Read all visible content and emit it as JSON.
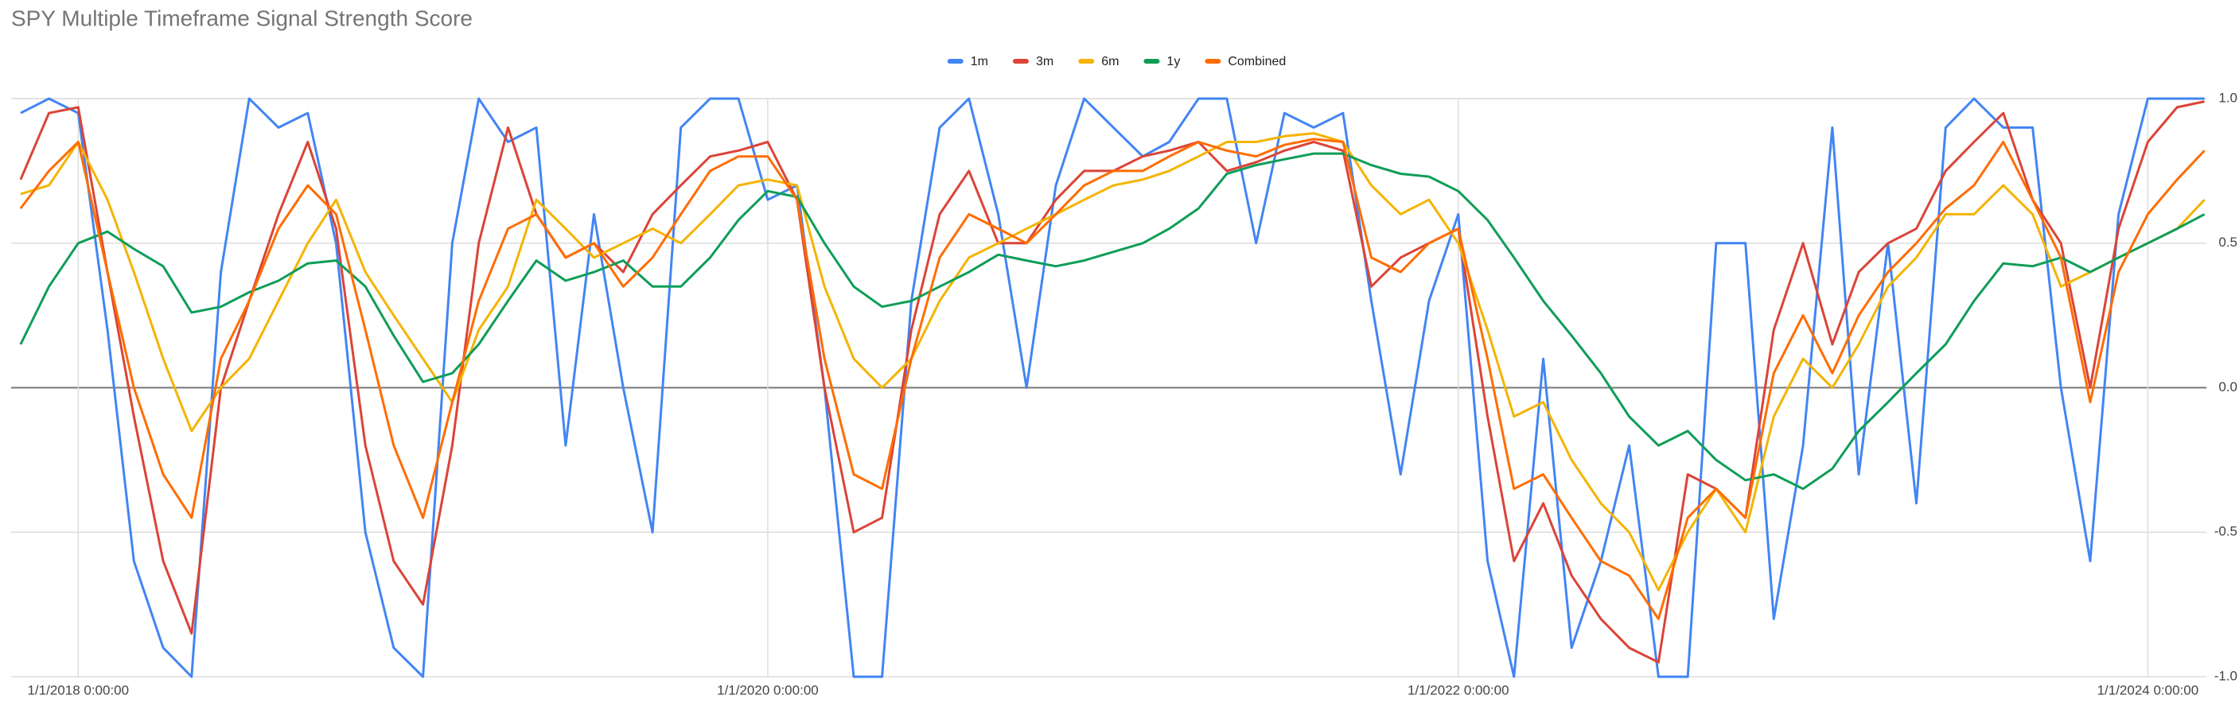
{
  "chart_data": {
    "type": "line",
    "title": "SPY Multiple Timeframe Signal Strength Score",
    "x": [
      "2017-11-01",
      "2017-12-01",
      "2018-01-01",
      "2018-02-01",
      "2018-03-01",
      "2018-04-01",
      "2018-05-01",
      "2018-06-01",
      "2018-07-01",
      "2018-08-01",
      "2018-09-01",
      "2018-10-01",
      "2018-11-01",
      "2018-12-01",
      "2019-01-01",
      "2019-02-01",
      "2019-03-01",
      "2019-04-01",
      "2019-05-01",
      "2019-06-01",
      "2019-07-01",
      "2019-08-01",
      "2019-09-01",
      "2019-10-01",
      "2019-11-01",
      "2019-12-01",
      "2020-01-01",
      "2020-02-01",
      "2020-03-01",
      "2020-04-01",
      "2020-05-01",
      "2020-06-01",
      "2020-07-01",
      "2020-08-01",
      "2020-09-01",
      "2020-10-01",
      "2020-11-01",
      "2020-12-01",
      "2021-01-01",
      "2021-02-01",
      "2021-03-01",
      "2021-04-01",
      "2021-05-01",
      "2021-06-01",
      "2021-07-01",
      "2021-08-01",
      "2021-09-01",
      "2021-10-01",
      "2021-11-01",
      "2021-12-01",
      "2022-01-01",
      "2022-02-01",
      "2022-03-01",
      "2022-04-01",
      "2022-05-01",
      "2022-06-01",
      "2022-07-01",
      "2022-08-01",
      "2022-09-01",
      "2022-10-01",
      "2022-11-01",
      "2022-12-01",
      "2023-01-01",
      "2023-02-01",
      "2023-03-01",
      "2023-04-01",
      "2023-05-01",
      "2023-06-01",
      "2023-07-01",
      "2023-08-01",
      "2023-09-01",
      "2023-10-01",
      "2023-11-01",
      "2023-12-01",
      "2024-01-01",
      "2024-02-01",
      "2024-03-01"
    ],
    "series": [
      {
        "name": "1m",
        "color": "#4285f4",
        "values": [
          0.95,
          1.0,
          0.95,
          0.2,
          -0.6,
          -0.9,
          -1.0,
          0.4,
          1.0,
          0.9,
          0.95,
          0.5,
          -0.5,
          -0.9,
          -1.0,
          0.5,
          1.0,
          0.85,
          0.9,
          -0.2,
          0.6,
          0.0,
          -0.5,
          0.9,
          1.0,
          1.0,
          0.65,
          0.7,
          0.0,
          -1.0,
          -1.0,
          0.3,
          0.9,
          1.0,
          0.6,
          0.0,
          0.7,
          1.0,
          0.9,
          0.8,
          0.85,
          1.0,
          1.0,
          0.5,
          0.95,
          0.9,
          0.95,
          0.3,
          -0.3,
          0.3,
          0.6,
          -0.6,
          -1.0,
          0.1,
          -0.9,
          -0.6,
          -0.2,
          -1.0,
          -1.0,
          0.5,
          0.5,
          -0.8,
          -0.2,
          0.9,
          -0.3,
          0.5,
          -0.4,
          0.9,
          1.0,
          0.9,
          0.9,
          0.0,
          -0.6,
          0.6,
          1.0,
          1.0,
          1.0
        ]
      },
      {
        "name": "3m",
        "color": "#db4437",
        "values": [
          0.72,
          0.95,
          0.97,
          0.4,
          -0.1,
          -0.6,
          -0.85,
          0.0,
          0.3,
          0.6,
          0.85,
          0.55,
          -0.2,
          -0.6,
          -0.75,
          -0.2,
          0.5,
          0.9,
          0.6,
          0.45,
          0.5,
          0.4,
          0.6,
          0.7,
          0.8,
          0.82,
          0.85,
          0.65,
          0.0,
          -0.5,
          -0.45,
          0.2,
          0.6,
          0.75,
          0.5,
          0.5,
          0.65,
          0.75,
          0.75,
          0.8,
          0.82,
          0.85,
          0.75,
          0.78,
          0.82,
          0.85,
          0.82,
          0.35,
          0.45,
          0.5,
          0.55,
          -0.1,
          -0.6,
          -0.4,
          -0.65,
          -0.8,
          -0.9,
          -0.95,
          -0.3,
          -0.35,
          -0.45,
          0.2,
          0.5,
          0.15,
          0.4,
          0.5,
          0.55,
          0.75,
          0.85,
          0.95,
          0.65,
          0.5,
          0.0,
          0.55,
          0.85,
          0.97,
          0.99
        ]
      },
      {
        "name": "6m",
        "color": "#f4b400",
        "values": [
          0.67,
          0.7,
          0.85,
          0.65,
          0.4,
          0.1,
          -0.15,
          0.0,
          0.1,
          0.3,
          0.5,
          0.65,
          0.4,
          0.25,
          0.1,
          -0.05,
          0.2,
          0.35,
          0.65,
          0.55,
          0.45,
          0.5,
          0.55,
          0.5,
          0.6,
          0.7,
          0.72,
          0.7,
          0.35,
          0.1,
          0.0,
          0.1,
          0.3,
          0.45,
          0.5,
          0.55,
          0.6,
          0.65,
          0.7,
          0.72,
          0.75,
          0.8,
          0.85,
          0.85,
          0.87,
          0.88,
          0.85,
          0.7,
          0.6,
          0.65,
          0.5,
          0.2,
          -0.1,
          -0.05,
          -0.25,
          -0.4,
          -0.5,
          -0.7,
          -0.5,
          -0.35,
          -0.5,
          -0.1,
          0.1,
          0.0,
          0.15,
          0.35,
          0.45,
          0.6,
          0.6,
          0.7,
          0.6,
          0.35,
          0.4,
          0.45,
          0.5,
          0.55,
          0.65
        ]
      },
      {
        "name": "1y",
        "color": "#0f9d58",
        "values": [
          0.15,
          0.35,
          0.5,
          0.54,
          0.48,
          0.42,
          0.26,
          0.28,
          0.33,
          0.37,
          0.43,
          0.44,
          0.35,
          0.18,
          0.02,
          0.05,
          0.15,
          0.3,
          0.44,
          0.37,
          0.4,
          0.44,
          0.35,
          0.35,
          0.45,
          0.58,
          0.68,
          0.66,
          0.5,
          0.35,
          0.28,
          0.3,
          0.35,
          0.4,
          0.46,
          0.44,
          0.42,
          0.44,
          0.47,
          0.5,
          0.55,
          0.62,
          0.74,
          0.77,
          0.79,
          0.81,
          0.81,
          0.77,
          0.74,
          0.73,
          0.68,
          0.58,
          0.45,
          0.3,
          0.18,
          0.05,
          -0.1,
          -0.2,
          -0.15,
          -0.25,
          -0.32,
          -0.3,
          -0.35,
          -0.28,
          -0.15,
          -0.05,
          0.05,
          0.15,
          0.3,
          0.43,
          0.42,
          0.45,
          0.4,
          0.45,
          0.5,
          0.55,
          0.6
        ]
      },
      {
        "name": "Combined",
        "color": "#ff6d01",
        "values": [
          0.62,
          0.75,
          0.85,
          0.4,
          0.0,
          -0.3,
          -0.45,
          0.1,
          0.3,
          0.55,
          0.7,
          0.6,
          0.2,
          -0.2,
          -0.45,
          -0.05,
          0.3,
          0.55,
          0.6,
          0.45,
          0.5,
          0.35,
          0.45,
          0.6,
          0.75,
          0.8,
          0.8,
          0.65,
          0.1,
          -0.3,
          -0.35,
          0.1,
          0.45,
          0.6,
          0.55,
          0.5,
          0.6,
          0.7,
          0.75,
          0.75,
          0.8,
          0.85,
          0.82,
          0.8,
          0.84,
          0.86,
          0.85,
          0.45,
          0.4,
          0.5,
          0.55,
          0.1,
          -0.35,
          -0.3,
          -0.45,
          -0.6,
          -0.65,
          -0.8,
          -0.45,
          -0.35,
          -0.45,
          0.05,
          0.25,
          0.05,
          0.25,
          0.4,
          0.5,
          0.62,
          0.7,
          0.85,
          0.65,
          0.45,
          -0.05,
          0.4,
          0.6,
          0.72,
          0.82
        ]
      }
    ],
    "xlim": [
      "2017-10-22",
      "2024-03-03"
    ],
    "xticks": [
      {
        "value": "2018-01-01",
        "label": "1/1/2018 0:00:00"
      },
      {
        "value": "2020-01-01",
        "label": "1/1/2020 0:00:00"
      },
      {
        "value": "2022-01-01",
        "label": "1/1/2022 0:00:00"
      },
      {
        "value": "2024-01-01",
        "label": "1/1/2024 0:00:00"
      }
    ],
    "ylim": [
      -1,
      1
    ],
    "yticks": [
      {
        "value": -1,
        "label": "-1.0"
      },
      {
        "value": -0.5,
        "label": "-0.5"
      },
      {
        "value": 0,
        "label": "0.0"
      },
      {
        "value": 0.5,
        "label": "0.5"
      },
      {
        "value": 1,
        "label": "1.0"
      }
    ],
    "grid": true,
    "legend": "top"
  }
}
